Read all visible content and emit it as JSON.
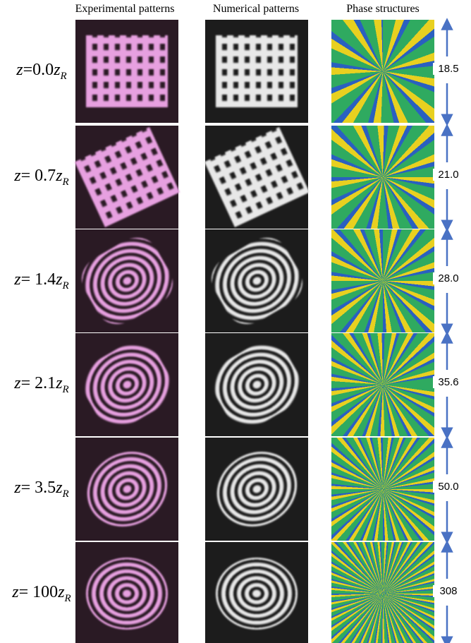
{
  "header": {
    "columns": [
      "Experimental patterns",
      "Numerical patterns",
      "Phase structures"
    ]
  },
  "rows": [
    {
      "label": {
        "lhs": "z",
        "mid": "=0.0",
        "rhs": "z",
        "sub": "R"
      },
      "scale": "18.5"
    },
    {
      "label": {
        "lhs": "z",
        "mid": "= 0.7",
        "rhs": "z",
        "sub": "R"
      },
      "scale": "21.0"
    },
    {
      "label": {
        "lhs": "z",
        "mid": "= 1.4",
        "rhs": "z",
        "sub": "R"
      },
      "scale": "28.0"
    },
    {
      "label": {
        "lhs": "z",
        "mid": "= 2.1",
        "rhs": "z",
        "sub": "R"
      },
      "scale": "35.6"
    },
    {
      "label": {
        "lhs": "z",
        "mid": "= 3.5",
        "rhs": "z",
        "sub": "R"
      },
      "scale": "50.0"
    },
    {
      "label": {
        "lhs": "z",
        "mid": "= 100",
        "rhs": "z",
        "sub": "R"
      },
      "scale": "308"
    }
  ]
}
